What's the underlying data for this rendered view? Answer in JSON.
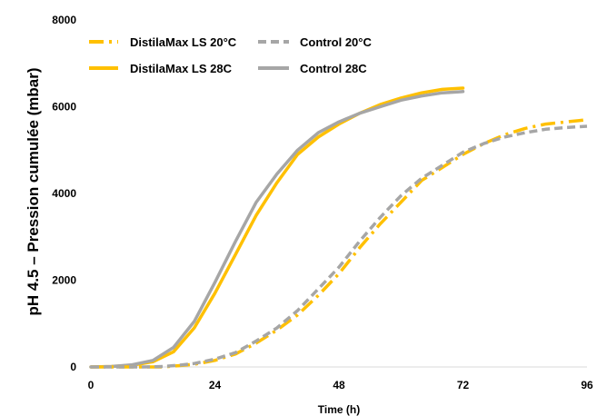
{
  "chart_data": {
    "type": "line",
    "title": "",
    "xlabel": "Time (h)",
    "ylabel": "pH 4.5 – Pression cumulée (mbar)",
    "xlim": [
      0,
      96
    ],
    "ylim": [
      0,
      8000
    ],
    "xticks": [
      0,
      24,
      48,
      72,
      96
    ],
    "yticks": [
      0,
      2000,
      4000,
      6000,
      8000
    ],
    "grid": false,
    "legend": "top-left",
    "series": [
      {
        "name": "DistilaMax LS 20°C",
        "color": "#FFC000",
        "dash": "dashdot",
        "x": [
          0,
          10,
          14,
          17,
          20,
          24,
          28,
          32,
          36,
          40,
          44,
          48,
          52,
          56,
          60,
          64,
          68,
          72,
          76,
          80,
          84,
          88,
          92,
          96
        ],
        "y": [
          0,
          0,
          0,
          30,
          60,
          150,
          300,
          550,
          850,
          1200,
          1650,
          2150,
          2750,
          3300,
          3800,
          4300,
          4600,
          4900,
          5150,
          5350,
          5500,
          5600,
          5650,
          5700
        ]
      },
      {
        "name": "Control 20°C",
        "color": "#A6A6A6",
        "dash": "dashed",
        "x": [
          0,
          10,
          14,
          17,
          20,
          24,
          28,
          32,
          36,
          40,
          44,
          48,
          52,
          56,
          60,
          64,
          68,
          72,
          76,
          80,
          84,
          88,
          92,
          96
        ],
        "y": [
          0,
          0,
          10,
          40,
          80,
          180,
          330,
          600,
          900,
          1300,
          1800,
          2300,
          2900,
          3450,
          3950,
          4350,
          4650,
          4950,
          5150,
          5300,
          5400,
          5480,
          5520,
          5550
        ]
      },
      {
        "name": "DistilaMax LS  28C",
        "color": "#FFC000",
        "dash": "solid",
        "x": [
          0,
          4,
          8,
          12,
          16,
          20,
          24,
          28,
          32,
          36,
          40,
          44,
          48,
          52,
          56,
          60,
          64,
          68,
          72
        ],
        "y": [
          0,
          10,
          40,
          120,
          350,
          900,
          1700,
          2600,
          3500,
          4250,
          4900,
          5300,
          5600,
          5850,
          6050,
          6200,
          6320,
          6400,
          6430
        ]
      },
      {
        "name": "Control 28C",
        "color": "#A6A6A6",
        "dash": "solid",
        "x": [
          0,
          4,
          8,
          12,
          16,
          20,
          24,
          28,
          32,
          36,
          40,
          44,
          48,
          52,
          56,
          60,
          64,
          68,
          72
        ],
        "y": [
          0,
          10,
          50,
          150,
          450,
          1050,
          1950,
          2900,
          3800,
          4450,
          5000,
          5400,
          5650,
          5850,
          6000,
          6150,
          6250,
          6320,
          6350
        ]
      }
    ]
  }
}
